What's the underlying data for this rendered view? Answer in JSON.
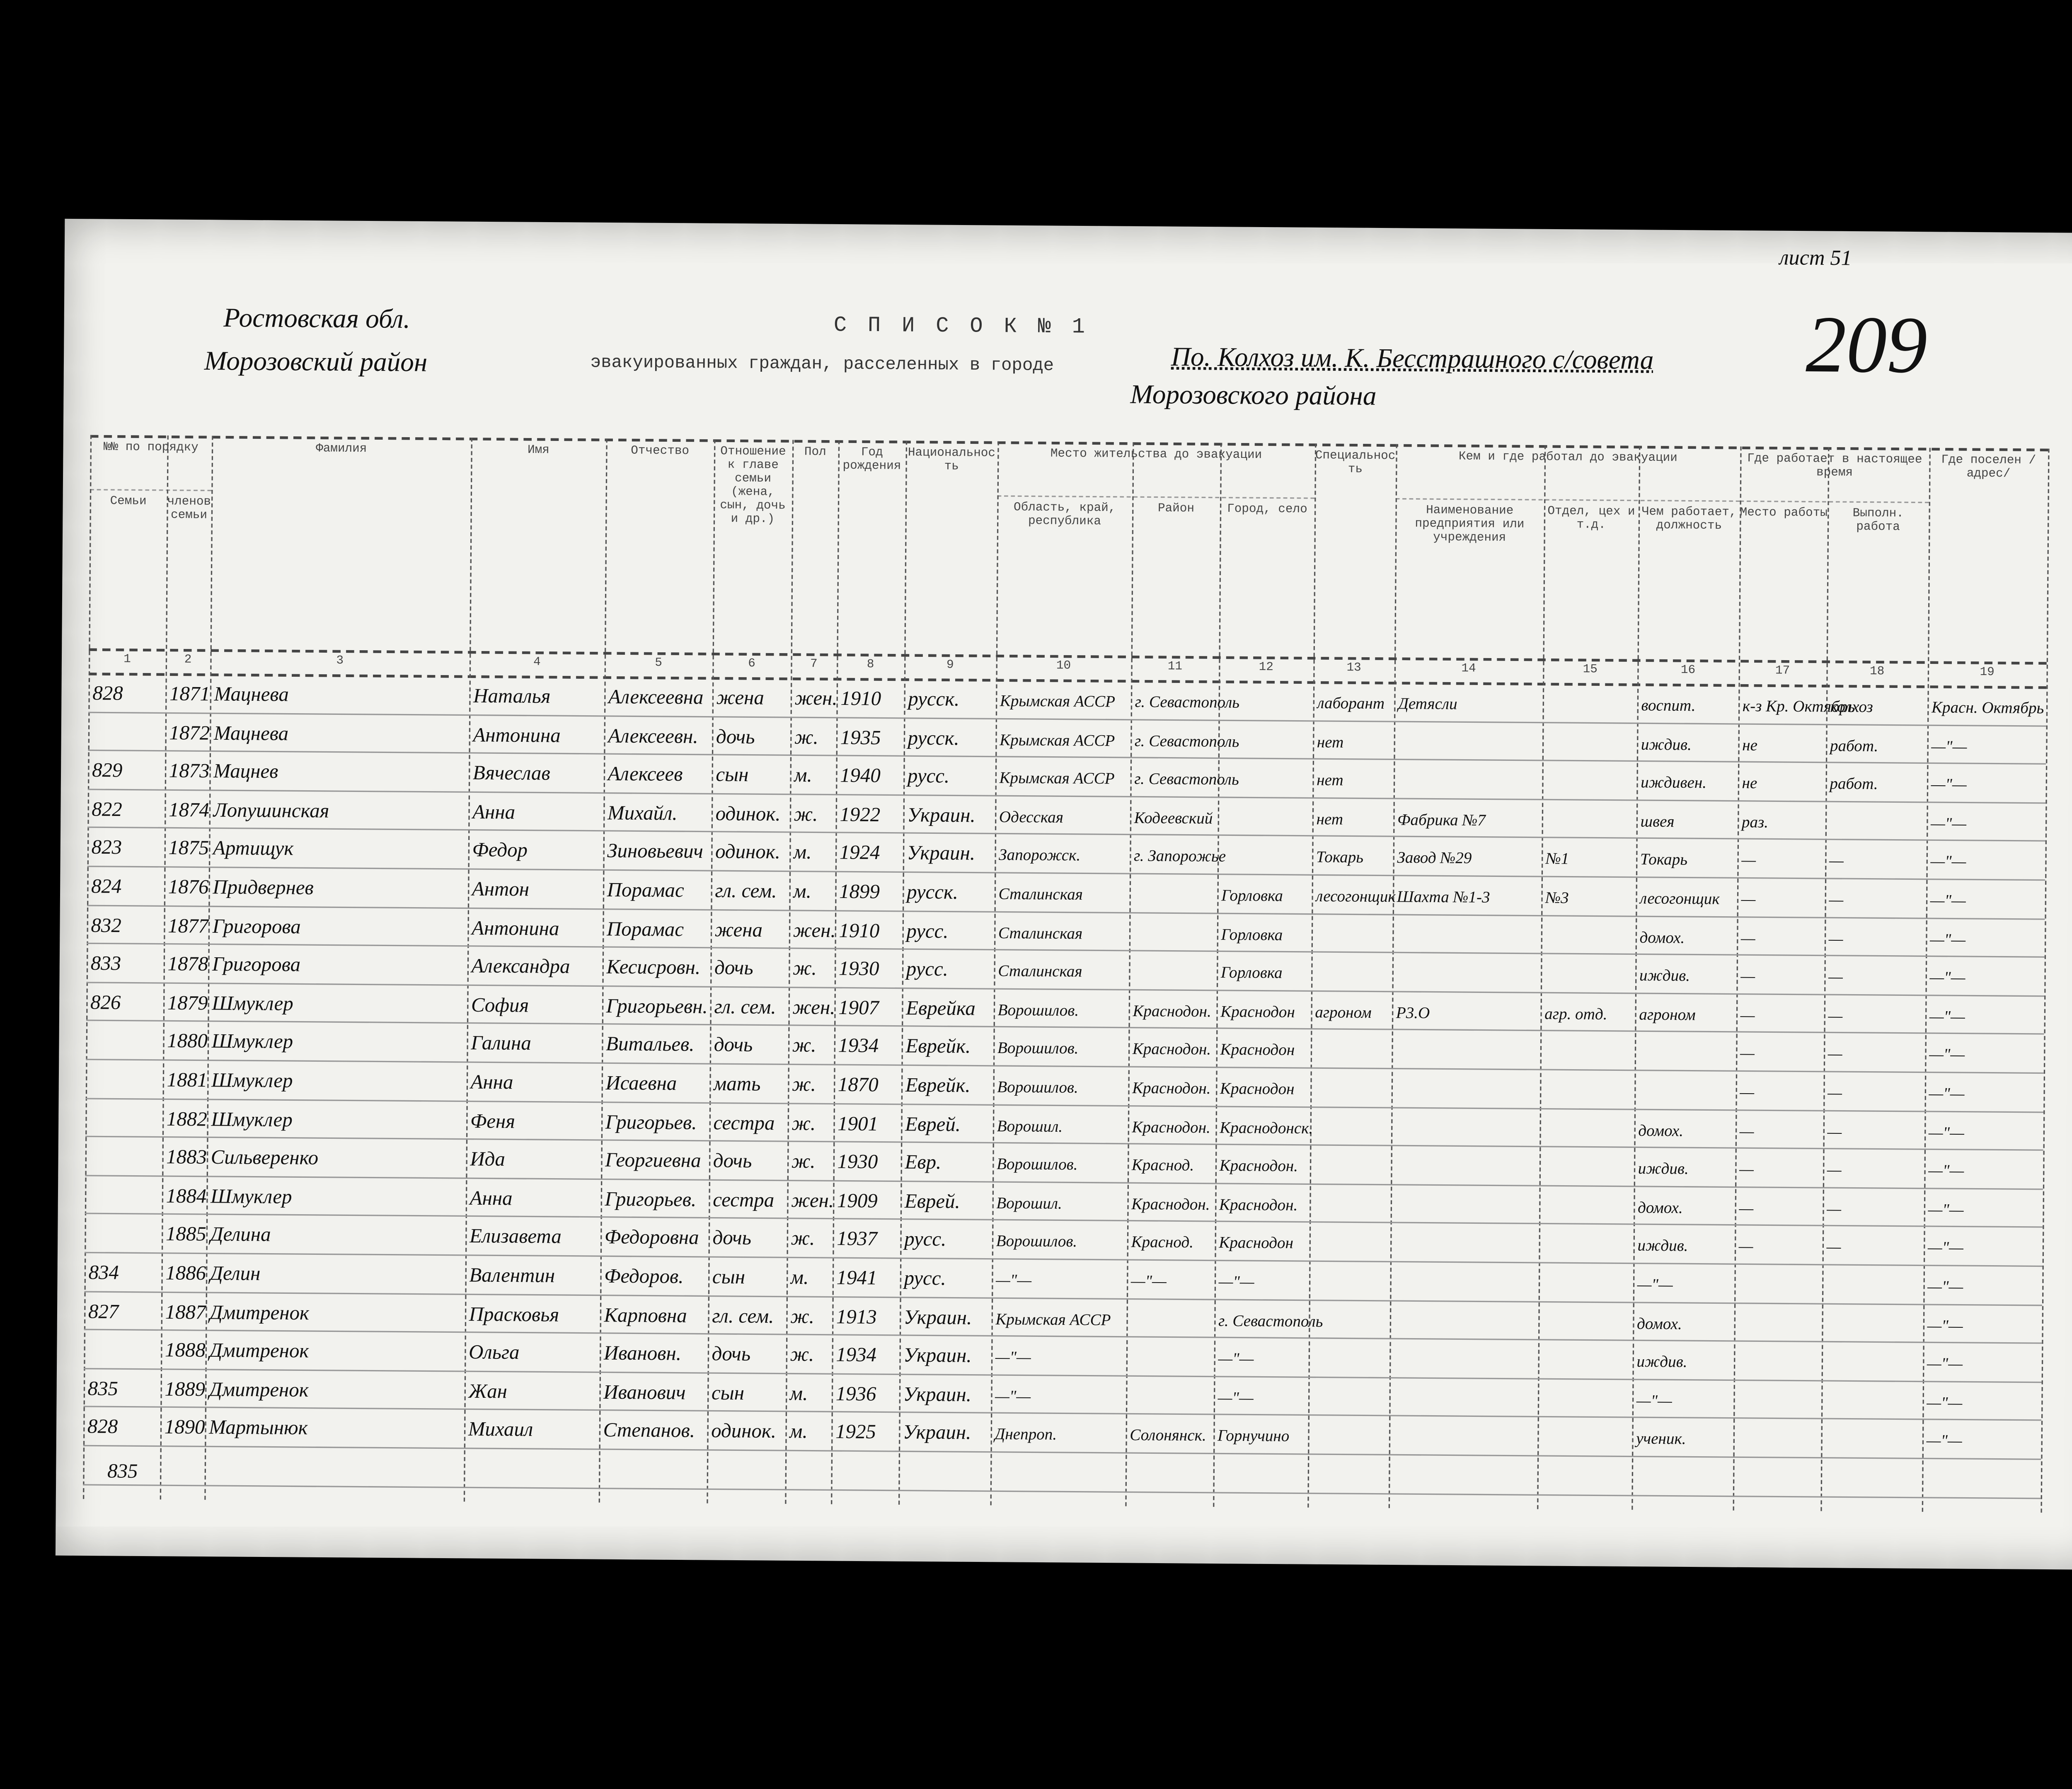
{
  "header": {
    "sheet_note": "лист 51",
    "region": "Ростовская обл.",
    "district": "Морозовский район",
    "title": "С П И С О К № 1",
    "subtitle": "эвакуированных граждан, расселенных в городе",
    "place": "По. Колхоз им. К. Бесстрашного с/совета",
    "place_line2": "Морозовского района",
    "number": "209"
  },
  "table": {
    "group_headers": [
      "№№ по порядку",
      "Место жительства до эвакуации",
      "Кем и где работал до эвакуации",
      "Где работает в настоящее время"
    ],
    "columns": [
      "Семьи",
      "членов семьи",
      "Фамилия",
      "Имя",
      "Отчество",
      "Отношение к главе семьи (жена, сын, дочь и др.)",
      "Пол",
      "Год рождения",
      "Национальность",
      "Область, край, республика",
      "Район",
      "Город, село",
      "Специальность",
      "Наименование предприятия или учреждения",
      "Отдел, цех и т.д.",
      "Чем работает, должность",
      "Место работы",
      "Выполн. работа",
      "Где поселен /адрес/"
    ],
    "column_numbers": [
      "1",
      "2",
      "3",
      "4",
      "5",
      "6",
      "7",
      "8",
      "9",
      "10",
      "11",
      "12",
      "13",
      "14",
      "15",
      "16",
      "17",
      "18",
      "19"
    ],
    "rows": [
      {
        "family_no": "828",
        "no": "1871",
        "surname": "Мацнева",
        "name": "Наталья",
        "patronymic": "Алексеевна",
        "relation": "жена",
        "sex": "жен.",
        "year": "1910",
        "nationality": "русск.",
        "region": "Крымская АССР",
        "district": "г. Севастополь",
        "specialty": "лаборант",
        "enterprise": "Детясли",
        "position": "воспит.",
        "work_place": "к-з Кр. Октябрь",
        "work_done": "колхоз",
        "address": "Красн. Октябрь"
      },
      {
        "no": "1872",
        "surname": "Мацнева",
        "name": "Антонина",
        "patronymic": "Алексеевн.",
        "relation": "дочь",
        "sex": "ж.",
        "year": "1935",
        "nationality": "русск.",
        "region": "Крымская АССР",
        "district": "г. Севастополь",
        "specialty": "нет",
        "position": "иждив.",
        "work_place": "не",
        "work_done": "работ.",
        "address": "—\"—"
      },
      {
        "family_no": "829",
        "no": "1873",
        "surname": "Мацнев",
        "name": "Вячеслав",
        "patronymic": "Алексеев",
        "relation": "сын",
        "sex": "м.",
        "year": "1940",
        "nationality": "русс.",
        "region": "Крымская АССР",
        "district": "г. Севастополь",
        "specialty": "нет",
        "position": "иждивен.",
        "work_place": "не",
        "work_done": "работ.",
        "address": "—\"—"
      },
      {
        "family_no": "822",
        "no": "1874",
        "surname": "Лопушинская",
        "name": "Анна",
        "patronymic": "Михайл.",
        "relation": "одинок.",
        "sex": "ж.",
        "year": "1922",
        "nationality": "Украин.",
        "region": "Одесская",
        "district": "Кодеевский",
        "specialty": "нет",
        "enterprise": "Фабрика №7",
        "position": "швея",
        "work_place": "раз.",
        "address": "—\"—"
      },
      {
        "family_no": "823",
        "no": "1875",
        "surname": "Артищук",
        "name": "Федор",
        "patronymic": "Зиновьевич",
        "relation": "одинок.",
        "sex": "м.",
        "year": "1924",
        "nationality": "Украин.",
        "region": "Запорожск.",
        "district": "г. Запорожье",
        "specialty": "Токарь",
        "enterprise": "Завод №29",
        "department": "№1",
        "position": "Токарь",
        "work_place": "—",
        "work_done": "—",
        "address": "—\"—"
      },
      {
        "family_no": "824",
        "no": "1876",
        "surname": "Придвернев",
        "name": "Антон",
        "patronymic": "Порамас",
        "relation": "гл. сем.",
        "sex": "м.",
        "year": "1899",
        "nationality": "русск.",
        "region": "Сталинская",
        "town": "Горловка",
        "specialty": "лесогонщик",
        "enterprise": "Шахта №1-3",
        "department": "№3",
        "position": "лесогонщик",
        "work_place": "—",
        "work_done": "—",
        "address": "—\"—"
      },
      {
        "family_no": "832",
        "no": "1877",
        "surname": "Григорова",
        "name": "Антонина",
        "patronymic": "Порамас",
        "relation": "жена",
        "sex": "жен.",
        "year": "1910",
        "nationality": "русс.",
        "region": "Сталинская",
        "town": "Горловка",
        "position": "домох.",
        "work_place": "—",
        "work_done": "—",
        "address": "—\"—"
      },
      {
        "family_no": "833",
        "no": "1878",
        "surname": "Григорова",
        "name": "Александра",
        "patronymic": "Кесисровн.",
        "relation": "дочь",
        "sex": "ж.",
        "year": "1930",
        "nationality": "русс.",
        "region": "Сталинская",
        "town": "Горловка",
        "position": "иждив.",
        "work_place": "—",
        "work_done": "—",
        "address": "—\"—"
      },
      {
        "family_no": "826",
        "no": "1879",
        "surname": "Шмуклер",
        "name": "София",
        "patronymic": "Григорьевн.",
        "relation": "гл. сем.",
        "sex": "жен.",
        "year": "1907",
        "nationality": "Еврейка",
        "region": "Ворошилов.",
        "district": "Краснодон.",
        "town": "Краснодон",
        "specialty": "агроном",
        "enterprise": "Р3.О",
        "department": "агр. отд.",
        "position": "агроном",
        "work_place": "—",
        "work_done": "—",
        "address": "—\"—"
      },
      {
        "no": "1880",
        "surname": "Шмуклер",
        "name": "Галина",
        "patronymic": "Витальев.",
        "relation": "дочь",
        "sex": "ж.",
        "year": "1934",
        "nationality": "Еврейк.",
        "region": "Ворошилов.",
        "district": "Краснодон.",
        "town": "Краснодон",
        "work_place": "—",
        "work_done": "—",
        "address": "—\"—"
      },
      {
        "no": "1881",
        "surname": "Шмуклер",
        "name": "Анна",
        "patronymic": "Исаевна",
        "relation": "мать",
        "sex": "ж.",
        "year": "1870",
        "nationality": "Еврейк.",
        "region": "Ворошилов.",
        "district": "Краснодон.",
        "town": "Краснодон",
        "work_place": "—",
        "work_done": "—",
        "address": "—\"—"
      },
      {
        "no": "1882",
        "surname": "Шмуклер",
        "name": "Феня",
        "patronymic": "Григорьев.",
        "relation": "сестра",
        "sex": "ж.",
        "year": "1901",
        "nationality": "Еврей.",
        "region": "Ворошил.",
        "district": "Краснодон.",
        "town": "Краснодонск.",
        "position": "домох.",
        "work_place": "—",
        "work_done": "—",
        "address": "—\"—"
      },
      {
        "no": "1883",
        "surname": "Сильверенко",
        "name": "Ида",
        "patronymic": "Георгиевна",
        "relation": "дочь",
        "sex": "ж.",
        "year": "1930",
        "nationality": "Евр.",
        "region": "Ворошилов.",
        "district": "Краснод.",
        "town": "Краснодон.",
        "position": "иждив.",
        "work_place": "—",
        "work_done": "—",
        "address": "—\"—"
      },
      {
        "no": "1884",
        "surname": "Шмуклер",
        "name": "Анна",
        "patronymic": "Григорьев.",
        "relation": "сестра",
        "sex": "жен.",
        "year": "1909",
        "nationality": "Еврей.",
        "region": "Ворошил.",
        "district": "Краснодон.",
        "town": "Краснодон.",
        "position": "домох.",
        "work_place": "—",
        "work_done": "—",
        "address": "—\"—"
      },
      {
        "no": "1885",
        "surname": "Делина",
        "name": "Елизавета",
        "patronymic": "Федоровна",
        "relation": "дочь",
        "sex": "ж.",
        "year": "1937",
        "nationality": "русс.",
        "region": "Ворошилов.",
        "district": "Краснод.",
        "town": "Краснодон",
        "position": "иждив.",
        "work_place": "—",
        "work_done": "—",
        "address": "—\"—"
      },
      {
        "family_no": "834",
        "no": "1886",
        "surname": "Делин",
        "name": "Валентин",
        "patronymic": "Федоров.",
        "relation": "сын",
        "sex": "м.",
        "year": "1941",
        "nationality": "русс.",
        "region": "—\"—",
        "district": "—\"—",
        "town": "—\"—",
        "position": "—\"—",
        "address": "—\"—"
      },
      {
        "family_no": "827",
        "no": "1887",
        "surname": "Дмитренок",
        "name": "Прасковья",
        "patronymic": "Карповна",
        "relation": "гл. сем.",
        "sex": "ж.",
        "year": "1913",
        "nationality": "Украин.",
        "region": "Крымская АССР",
        "town": "г. Севастополь",
        "position": "домох.",
        "address": "—\"—"
      },
      {
        "no": "1888",
        "surname": "Дмитренок",
        "name": "Ольга",
        "patronymic": "Ивановн.",
        "relation": "дочь",
        "sex": "ж.",
        "year": "1934",
        "nationality": "Украин.",
        "region": "—\"—",
        "town": "—\"—",
        "position": "иждив.",
        "address": "—\"—"
      },
      {
        "family_no": "835",
        "no": "1889",
        "surname": "Дмитренок",
        "name": "Жан",
        "patronymic": "Иванович",
        "relation": "сын",
        "sex": "м.",
        "year": "1936",
        "nationality": "Украин.",
        "region": "—\"—",
        "town": "—\"—",
        "position": "—\"—",
        "address": "—\"—"
      },
      {
        "family_no": "828",
        "no": "1890",
        "surname": "Мартынюк",
        "name": "Михаил",
        "patronymic": "Степанов.",
        "relation": "одинок.",
        "sex": "м.",
        "year": "1925",
        "nationality": "Украин.",
        "region": "Днепроп.",
        "district": "Солонянск.",
        "town": "Горнучино",
        "position": "ученик.",
        "address": "—\"—"
      }
    ],
    "footnote": "835"
  }
}
